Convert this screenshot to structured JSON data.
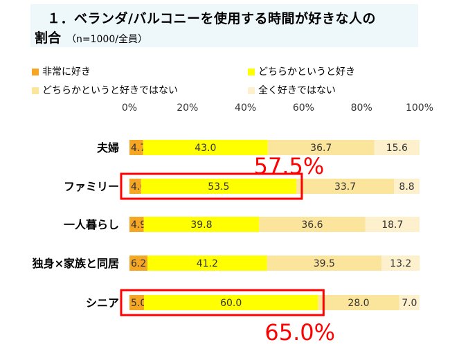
{
  "title": "１．ベランダ/バルコニーを使用する時間が好きな人の",
  "subtitle": "割合",
  "subtitle_note": "（n=1000/全員）",
  "chart_data": {
    "type": "bar",
    "orientation": "horizontal",
    "stacked": true,
    "normalized": true,
    "categories": [
      "夫婦",
      "ファミリー",
      "一人暮らし",
      "独身×家族と同居",
      "シニア"
    ],
    "series": [
      {
        "name": "非常に好き",
        "color": "#f5a623",
        "values": [
          4.7,
          4.0,
          4.9,
          6.2,
          5.0
        ]
      },
      {
        "name": "どちらかというと好き",
        "color": "#ffff00",
        "values": [
          43.0,
          53.5,
          39.8,
          41.2,
          60.0
        ]
      },
      {
        "name": "どちらかというと好きではない",
        "color": "#fbe49b",
        "values": [
          36.7,
          33.7,
          36.6,
          39.5,
          28.0
        ]
      },
      {
        "name": "全く好きではない",
        "color": "#fdf0cd",
        "values": [
          15.6,
          8.8,
          18.7,
          13.2,
          7.0
        ]
      }
    ],
    "xlim": [
      0,
      100
    ],
    "xticks": [
      "0%",
      "20%",
      "40%",
      "60%",
      "80%",
      "100%"
    ],
    "legend_position": "top",
    "grid": false,
    "annotations": [
      {
        "category": "ファミリー",
        "text": "57.5%",
        "color": "#ff0000"
      },
      {
        "category": "シニア",
        "text": "65.0%",
        "color": "#ff0000"
      }
    ]
  }
}
